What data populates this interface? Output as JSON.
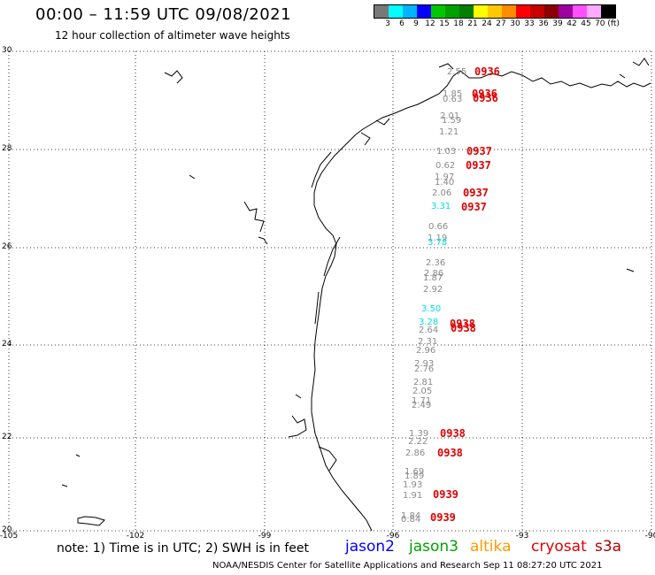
{
  "header": {
    "title": "00:00 – 11:59 UTC 09/08/2021",
    "subtitle": "12 hour collection of altimeter wave heights"
  },
  "colorbar": {
    "colors": [
      "#787878",
      "#00ffff",
      "#00b4ff",
      "#0000ff",
      "#00c800",
      "#00a000",
      "#008000",
      "#ffff00",
      "#ffc800",
      "#ff8c00",
      "#ff0000",
      "#c80000",
      "#8c0000",
      "#a000a0",
      "#ff50ff",
      "#ffaaff",
      "#000000"
    ],
    "ticks": [
      "3",
      "6",
      "9",
      "12",
      "15",
      "18",
      "21",
      "24",
      "27",
      "30",
      "33",
      "36",
      "39",
      "42",
      "45",
      "70 (ft)"
    ]
  },
  "map": {
    "lat_labels": [
      "30",
      "28",
      "26",
      "24",
      "22",
      "20"
    ],
    "lon_labels": [
      "-105",
      "-102",
      "-99",
      "-96",
      "-93",
      "-90"
    ],
    "colors": {
      "gray": "#8a8a8a",
      "cyan": "#00dede",
      "red": "#e00000"
    },
    "wave_heights": [
      {
        "text": "2.55",
        "c": "gray"
      },
      {
        "text": "1.85",
        "c": "gray"
      },
      {
        "text": "0.63",
        "c": "gray"
      },
      {
        "text": "2.01",
        "c": "gray"
      },
      {
        "text": "1.59",
        "c": "gray"
      },
      {
        "text": "1.21",
        "c": "gray"
      },
      {
        "text": "1.03",
        "c": "gray"
      },
      {
        "text": "0.62",
        "c": "gray"
      },
      {
        "text": "1.97",
        "c": "gray"
      },
      {
        "text": "1.40",
        "c": "gray"
      },
      {
        "text": "2.06",
        "c": "gray"
      },
      {
        "text": "3.31",
        "c": "cyan"
      },
      {
        "text": "0.66",
        "c": "gray"
      },
      {
        "text": "1.19",
        "c": "gray"
      },
      {
        "text": "3.78",
        "c": "cyan"
      },
      {
        "text": "2.36",
        "c": "gray"
      },
      {
        "text": "2.86",
        "c": "gray"
      },
      {
        "text": "1.87",
        "c": "gray"
      },
      {
        "text": "2.92",
        "c": "gray"
      },
      {
        "text": "3.50",
        "c": "cyan"
      },
      {
        "text": "3.28",
        "c": "cyan"
      },
      {
        "text": "2.64",
        "c": "gray"
      },
      {
        "text": "2.31",
        "c": "gray"
      },
      {
        "text": "2.96",
        "c": "gray"
      },
      {
        "text": "2.93",
        "c": "gray"
      },
      {
        "text": "2.76",
        "c": "gray"
      },
      {
        "text": "2.81",
        "c": "gray"
      },
      {
        "text": "2.05",
        "c": "gray"
      },
      {
        "text": "1.71",
        "c": "gray"
      },
      {
        "text": "2.49",
        "c": "gray"
      },
      {
        "text": "1.39",
        "c": "gray"
      },
      {
        "text": "2.22",
        "c": "gray"
      },
      {
        "text": "2.86",
        "c": "gray"
      },
      {
        "text": "1.69",
        "c": "gray"
      },
      {
        "text": "1.89",
        "c": "gray"
      },
      {
        "text": "1.93",
        "c": "gray"
      },
      {
        "text": "1.91",
        "c": "gray"
      },
      {
        "text": "1.84",
        "c": "gray"
      },
      {
        "text": "0.84",
        "c": "gray"
      }
    ],
    "pass_times": [
      "0936",
      "0936",
      "0936",
      "0937",
      "0937",
      "0937",
      "0937",
      "0938",
      "0938",
      "0938",
      "0938",
      "0939",
      "0939"
    ]
  },
  "footer": {
    "note": "note: 1) Time is in UTC; 2) SWH is in feet",
    "satellites": [
      {
        "name": "jason2",
        "color": "#0000ff"
      },
      {
        "name": "jason3",
        "color": "#00a000"
      },
      {
        "name": "altika",
        "color": "#ff9900"
      },
      {
        "name": "cryosat",
        "color": "#e00000"
      },
      {
        "name": "s3a",
        "color": "#b00000"
      }
    ],
    "credit": "NOAA/NESDIS Center for Satellite Applications and Research   Sep 11 08:27:20 UTC 2021"
  }
}
